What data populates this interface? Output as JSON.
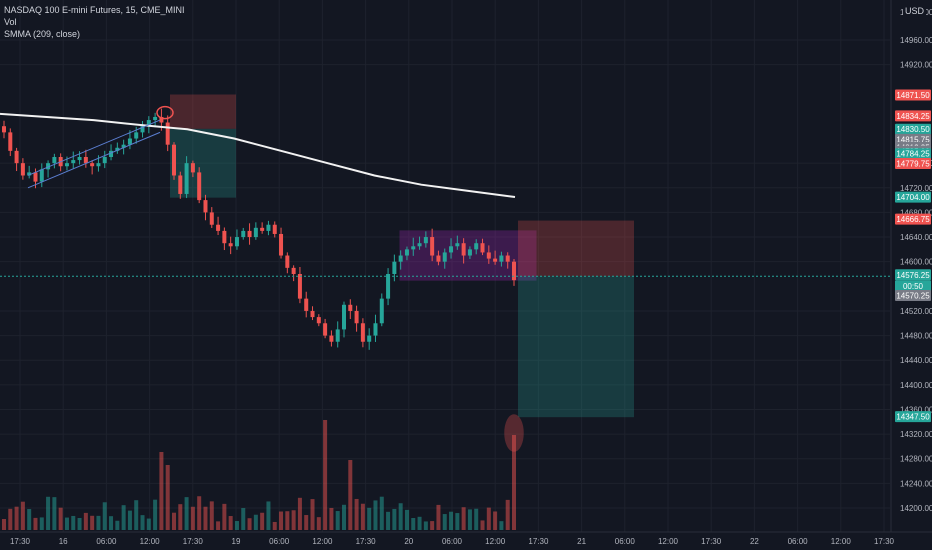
{
  "legend": {
    "symbol": "NASDAQ 100 E-mini Futures, 15, CME_MINI",
    "volume_label": "Vol",
    "indicator_label": "SMMA (209, close)"
  },
  "currency_label": "USD",
  "colors": {
    "background": "#131722",
    "up": "#26a69a",
    "down": "#ef5350",
    "smma": "#f2f2f2",
    "zone_red": "#ef5350",
    "zone_green": "#26a69a",
    "box_purple": "#9c27b0"
  },
  "price_axis": {
    "top_value": "15000.00",
    "ticks": [
      "14960.00",
      "14920.00",
      "14760.00",
      "14720.00",
      "14680.00",
      "14640.00",
      "14600.00",
      "14520.00",
      "14480.00",
      "14440.00",
      "14400.00",
      "14360.00",
      "14320.00",
      "14280.00",
      "14240.00",
      "14200.00"
    ]
  },
  "price_labels": [
    {
      "text": "14871.50",
      "color": "#ef5350"
    },
    {
      "text": "14834.25",
      "color": "#ef5350"
    },
    {
      "text": "14830.50",
      "color": "#26a69a"
    },
    {
      "text": "14815.75",
      "color": "#787b86"
    },
    {
      "text": "14812.25",
      "color": "#787b86"
    },
    {
      "text": "14795.00",
      "color": "#787b86"
    },
    {
      "text": "14784.25",
      "color": "#26a69a"
    },
    {
      "text": "14779.75",
      "color": "#ef5350"
    },
    {
      "text": "14704.00",
      "color": "#26a69a"
    },
    {
      "text": "14666.75",
      "color": "#ef5350"
    },
    {
      "text": "14576.25",
      "color": "#26a69a"
    },
    {
      "text": "00:50",
      "color": "#26a69a"
    },
    {
      "text": "14570.25",
      "color": "#787b86"
    },
    {
      "text": "14347.50",
      "color": "#26a69a"
    }
  ],
  "time_axis": [
    "17:30",
    "16",
    "06:00",
    "12:00",
    "17:30",
    "19",
    "06:00",
    "12:00",
    "17:30",
    "20",
    "06:00",
    "12:00",
    "17:30",
    "21",
    "06:00",
    "12:00",
    "17:30",
    "22",
    "06:00",
    "12:00",
    "17:30"
  ],
  "chart_data": {
    "type": "candlestick",
    "title": "NASDAQ 100 E-mini Futures, 15, CME_MINI",
    "interval": "15",
    "y_range": [
      14180,
      15000
    ],
    "last_price": 14576.25,
    "candles_close": [
      14810,
      14780,
      14760,
      14740,
      14745,
      14730,
      14750,
      14760,
      14770,
      14755,
      14760,
      14765,
      14770,
      14760,
      14755,
      14760,
      14770,
      14780,
      14785,
      14790,
      14800,
      14810,
      14820,
      14830,
      14835,
      14826,
      14790,
      14740,
      14710,
      14760,
      14745,
      14700,
      14680,
      14660,
      14650,
      14630,
      14625,
      14640,
      14650,
      14640,
      14655,
      14650,
      14660,
      14645,
      14610,
      14590,
      14580,
      14540,
      14520,
      14510,
      14500,
      14480,
      14470,
      14490,
      14530,
      14520,
      14500,
      14470,
      14480,
      14500,
      14540,
      14580,
      14600,
      14610,
      14620,
      14625,
      14630,
      14640,
      14610,
      14600,
      14615,
      14625,
      14630,
      14610,
      14620,
      14630,
      14615,
      14605,
      14600,
      14610,
      14600,
      14570
    ],
    "smma": [
      14840,
      14835,
      14830,
      14822,
      14815,
      14800,
      14780,
      14760,
      14740,
      14725,
      14715,
      14705
    ],
    "annotations": [
      "short position (14834.25 / 14784.25)",
      "purple range box",
      "short position (14666.75 / 14347.50)"
    ]
  }
}
